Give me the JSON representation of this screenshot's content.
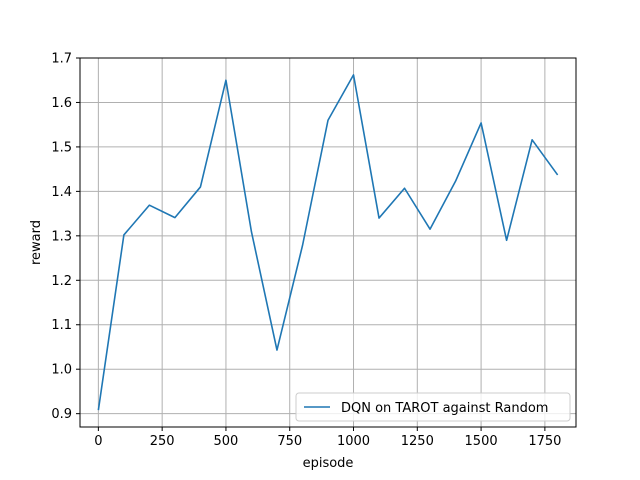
{
  "chart_data": {
    "type": "line",
    "title": "",
    "xlabel": "episode",
    "ylabel": "reward",
    "xlim": [
      -72,
      1872
    ],
    "ylim": [
      0.87,
      1.7
    ],
    "xticks": [
      0,
      250,
      500,
      750,
      1000,
      1250,
      1500,
      1750
    ],
    "yticks": [
      0.9,
      1.0,
      1.1,
      1.2,
      1.3,
      1.4,
      1.5,
      1.6,
      1.7
    ],
    "grid": true,
    "legend_position": "lower-right",
    "series": [
      {
        "name": "DQN on TAROT against Random",
        "color": "#1f77b4",
        "x": [
          0,
          100,
          200,
          300,
          400,
          500,
          600,
          700,
          800,
          900,
          1000,
          1100,
          1200,
          1300,
          1400,
          1500,
          1600,
          1700,
          1800
        ],
        "y": [
          0.908,
          1.302,
          1.369,
          1.341,
          1.41,
          1.65,
          1.309,
          1.043,
          1.278,
          1.56,
          1.662,
          1.34,
          1.407,
          1.315,
          1.423,
          1.554,
          1.29,
          1.516,
          1.437
        ]
      }
    ]
  }
}
